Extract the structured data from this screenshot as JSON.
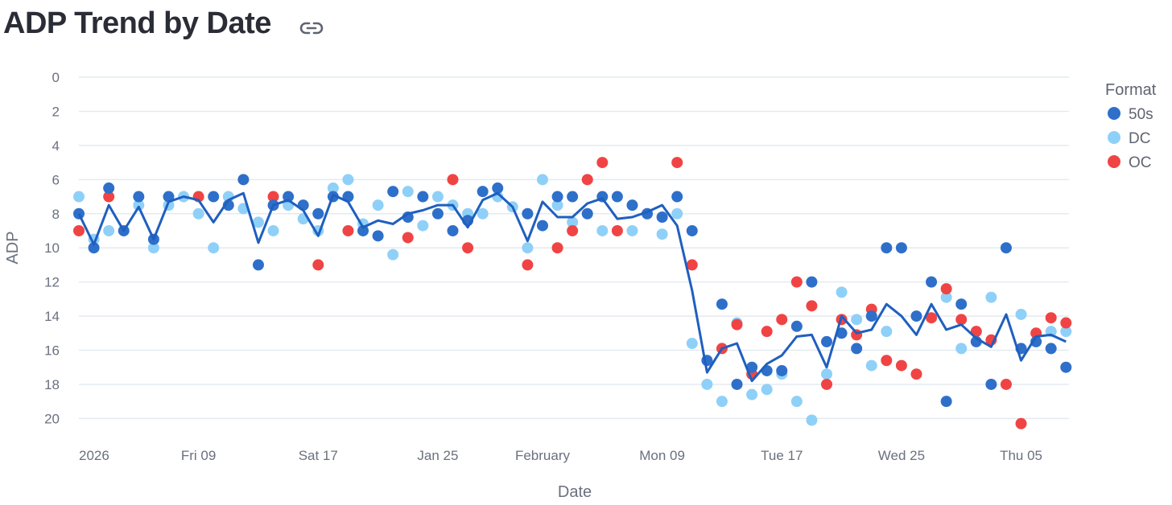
{
  "header": {
    "title": "ADP Trend by Date",
    "link_icon": "link-icon"
  },
  "chart_data": {
    "type": "scatter",
    "title": "ADP Trend by Date",
    "xlabel": "Date",
    "ylabel": "ADP",
    "y_reversed": true,
    "ylim": [
      0,
      20.5
    ],
    "yticks": [
      0,
      2,
      4,
      6,
      8,
      10,
      12,
      14,
      16,
      18,
      20
    ],
    "xlim": [
      "2026-01-01",
      "2026-03-07"
    ],
    "xticks": [
      {
        "date": "2026-01-01",
        "label": "2026"
      },
      {
        "date": "2026-01-09",
        "label": "Fri 09"
      },
      {
        "date": "2026-01-17",
        "label": "Sat 17"
      },
      {
        "date": "2026-01-25",
        "label": "Jan 25"
      },
      {
        "date": "2026-02-01",
        "label": "February"
      },
      {
        "date": "2026-02-09",
        "label": "Mon 09"
      },
      {
        "date": "2026-02-17",
        "label": "Tue 17"
      },
      {
        "date": "2026-02-25",
        "label": "Wed 25"
      },
      {
        "date": "2026-03-05",
        "label": "Thu 05"
      }
    ],
    "grid": true,
    "legend": {
      "title": "Format",
      "position": "top-right"
    },
    "series": [
      {
        "name": "50s",
        "color": "#2e6fca",
        "points": [
          [
            "2026-01-01",
            8
          ],
          [
            "2026-01-02",
            10
          ],
          [
            "2026-01-03",
            6.5
          ],
          [
            "2026-01-04",
            9
          ],
          [
            "2026-01-05",
            7
          ],
          [
            "2026-01-06",
            9.5
          ],
          [
            "2026-01-07",
            7
          ],
          [
            "2026-01-10",
            7
          ],
          [
            "2026-01-11",
            7.5
          ],
          [
            "2026-01-12",
            6
          ],
          [
            "2026-01-13",
            11
          ],
          [
            "2026-01-14",
            7.5
          ],
          [
            "2026-01-15",
            7
          ],
          [
            "2026-01-16",
            7.5
          ],
          [
            "2026-01-17",
            8
          ],
          [
            "2026-01-18",
            7
          ],
          [
            "2026-01-19",
            7
          ],
          [
            "2026-01-20",
            9
          ],
          [
            "2026-01-21",
            9.3
          ],
          [
            "2026-01-22",
            6.7
          ],
          [
            "2026-01-23",
            8.2
          ],
          [
            "2026-01-24",
            7
          ],
          [
            "2026-01-25",
            8
          ],
          [
            "2026-01-26",
            9
          ],
          [
            "2026-01-27",
            8.4
          ],
          [
            "2026-01-28",
            6.7
          ],
          [
            "2026-01-29",
            6.5
          ],
          [
            "2026-01-31",
            8
          ],
          [
            "2026-02-01",
            8.7
          ],
          [
            "2026-02-02",
            7
          ],
          [
            "2026-02-03",
            7
          ],
          [
            "2026-02-04",
            8
          ],
          [
            "2026-02-05",
            7
          ],
          [
            "2026-02-06",
            7
          ],
          [
            "2026-02-07",
            7.5
          ],
          [
            "2026-02-08",
            8
          ],
          [
            "2026-02-09",
            8.2
          ],
          [
            "2026-02-10",
            7
          ],
          [
            "2026-02-11",
            9
          ],
          [
            "2026-02-12",
            16.6
          ],
          [
            "2026-02-13",
            13.3
          ],
          [
            "2026-02-14",
            18
          ],
          [
            "2026-02-15",
            17
          ],
          [
            "2026-02-16",
            17.2
          ],
          [
            "2026-02-17",
            17.2
          ],
          [
            "2026-02-18",
            14.6
          ],
          [
            "2026-02-19",
            12
          ],
          [
            "2026-02-20",
            15.5
          ],
          [
            "2026-02-21",
            15
          ],
          [
            "2026-02-22",
            15.9
          ],
          [
            "2026-02-23",
            14
          ],
          [
            "2026-02-24",
            10
          ],
          [
            "2026-02-25",
            10
          ],
          [
            "2026-02-26",
            14
          ],
          [
            "2026-02-27",
            12
          ],
          [
            "2026-02-28",
            19
          ],
          [
            "2026-03-01",
            13.3
          ],
          [
            "2026-03-02",
            15.5
          ],
          [
            "2026-03-03",
            18
          ],
          [
            "2026-03-04",
            10
          ],
          [
            "2026-03-05",
            15.9
          ],
          [
            "2026-03-06",
            15.5
          ],
          [
            "2026-03-07",
            15.9
          ],
          [
            "2026-03-08",
            17
          ]
        ]
      },
      {
        "name": "DC",
        "color": "#8fd0f8",
        "points": [
          [
            "2026-01-01",
            7
          ],
          [
            "2026-01-02",
            9.5
          ],
          [
            "2026-01-03",
            9
          ],
          [
            "2026-01-05",
            7.5
          ],
          [
            "2026-01-06",
            10
          ],
          [
            "2026-01-07",
            7.5
          ],
          [
            "2026-01-08",
            7
          ],
          [
            "2026-01-09",
            8
          ],
          [
            "2026-01-10",
            10
          ],
          [
            "2026-01-11",
            7
          ],
          [
            "2026-01-12",
            7.7
          ],
          [
            "2026-01-13",
            8.5
          ],
          [
            "2026-01-14",
            9
          ],
          [
            "2026-01-15",
            7.5
          ],
          [
            "2026-01-16",
            8.3
          ],
          [
            "2026-01-17",
            9
          ],
          [
            "2026-01-18",
            6.5
          ],
          [
            "2026-01-19",
            6
          ],
          [
            "2026-01-20",
            8.6
          ],
          [
            "2026-01-21",
            7.5
          ],
          [
            "2026-01-22",
            10.4
          ],
          [
            "2026-01-23",
            6.7
          ],
          [
            "2026-01-24",
            8.7
          ],
          [
            "2026-01-25",
            7
          ],
          [
            "2026-01-26",
            7.5
          ],
          [
            "2026-01-27",
            8
          ],
          [
            "2026-01-28",
            8
          ],
          [
            "2026-01-29",
            7
          ],
          [
            "2026-01-30",
            7.6
          ],
          [
            "2026-01-31",
            10
          ],
          [
            "2026-02-01",
            6
          ],
          [
            "2026-02-02",
            7.5
          ],
          [
            "2026-02-03",
            8.5
          ],
          [
            "2026-02-05",
            9
          ],
          [
            "2026-02-07",
            9
          ],
          [
            "2026-02-08",
            8
          ],
          [
            "2026-02-09",
            9.2
          ],
          [
            "2026-02-10",
            8
          ],
          [
            "2026-02-11",
            15.6
          ],
          [
            "2026-02-12",
            18
          ],
          [
            "2026-02-13",
            19
          ],
          [
            "2026-02-14",
            14.4
          ],
          [
            "2026-02-15",
            18.6
          ],
          [
            "2026-02-16",
            18.3
          ],
          [
            "2026-02-17",
            17.4
          ],
          [
            "2026-02-18",
            19
          ],
          [
            "2026-02-19",
            20.1
          ],
          [
            "2026-02-20",
            17.4
          ],
          [
            "2026-02-21",
            12.6
          ],
          [
            "2026-02-22",
            14.2
          ],
          [
            "2026-02-23",
            16.9
          ],
          [
            "2026-02-24",
            14.9
          ],
          [
            "2026-02-28",
            12.9
          ],
          [
            "2026-03-01",
            15.9
          ],
          [
            "2026-03-03",
            12.9
          ],
          [
            "2026-03-05",
            13.9
          ],
          [
            "2026-03-07",
            14.9
          ],
          [
            "2026-03-08",
            14.9
          ]
        ]
      },
      {
        "name": "OC",
        "color": "#f04444",
        "points": [
          [
            "2026-01-01",
            9
          ],
          [
            "2026-01-03",
            7
          ],
          [
            "2026-01-09",
            7
          ],
          [
            "2026-01-14",
            7
          ],
          [
            "2026-01-17",
            11
          ],
          [
            "2026-01-19",
            9
          ],
          [
            "2026-01-23",
            9.4
          ],
          [
            "2026-01-26",
            6
          ],
          [
            "2026-01-27",
            10
          ],
          [
            "2026-01-31",
            11
          ],
          [
            "2026-02-02",
            10
          ],
          [
            "2026-02-03",
            9
          ],
          [
            "2026-02-04",
            6
          ],
          [
            "2026-02-05",
            5
          ],
          [
            "2026-02-06",
            9
          ],
          [
            "2026-02-10",
            5
          ],
          [
            "2026-02-11",
            11
          ],
          [
            "2026-02-13",
            15.9
          ],
          [
            "2026-02-14",
            14.5
          ],
          [
            "2026-02-15",
            17.4
          ],
          [
            "2026-02-16",
            14.9
          ],
          [
            "2026-02-17",
            14.2
          ],
          [
            "2026-02-18",
            12
          ],
          [
            "2026-02-19",
            13.4
          ],
          [
            "2026-02-20",
            18
          ],
          [
            "2026-02-21",
            14.2
          ],
          [
            "2026-02-22",
            15.1
          ],
          [
            "2026-02-23",
            13.6
          ],
          [
            "2026-02-24",
            16.6
          ],
          [
            "2026-02-25",
            16.9
          ],
          [
            "2026-02-26",
            17.4
          ],
          [
            "2026-02-27",
            14.1
          ],
          [
            "2026-02-28",
            12.4
          ],
          [
            "2026-03-01",
            14.2
          ],
          [
            "2026-03-02",
            14.9
          ],
          [
            "2026-03-03",
            15.4
          ],
          [
            "2026-03-04",
            18
          ],
          [
            "2026-03-05",
            20.3
          ],
          [
            "2026-03-06",
            15
          ],
          [
            "2026-03-07",
            14.1
          ],
          [
            "2026-03-08",
            14.4
          ]
        ]
      }
    ],
    "trend": {
      "color": "#1f5fbf",
      "points": [
        [
          "2026-01-01",
          8
        ],
        [
          "2026-01-02",
          9.8
        ],
        [
          "2026-01-03",
          7.5
        ],
        [
          "2026-01-04",
          9
        ],
        [
          "2026-01-05",
          7.6
        ],
        [
          "2026-01-06",
          9.5
        ],
        [
          "2026-01-07",
          7.3
        ],
        [
          "2026-01-08",
          7
        ],
        [
          "2026-01-09",
          7.2
        ],
        [
          "2026-01-10",
          8.5
        ],
        [
          "2026-01-11",
          7.2
        ],
        [
          "2026-01-12",
          6.8
        ],
        [
          "2026-01-13",
          9.7
        ],
        [
          "2026-01-14",
          7.5
        ],
        [
          "2026-01-15",
          7.2
        ],
        [
          "2026-01-16",
          7.8
        ],
        [
          "2026-01-17",
          9.3
        ],
        [
          "2026-01-18",
          6.9
        ],
        [
          "2026-01-19",
          7.3
        ],
        [
          "2026-01-20",
          8.8
        ],
        [
          "2026-01-21",
          8.4
        ],
        [
          "2026-01-22",
          8.6
        ],
        [
          "2026-01-23",
          8
        ],
        [
          "2026-01-24",
          7.8
        ],
        [
          "2026-01-25",
          7.5
        ],
        [
          "2026-01-26",
          7.5
        ],
        [
          "2026-01-27",
          8.8
        ],
        [
          "2026-01-28",
          7.2
        ],
        [
          "2026-01-29",
          6.8
        ],
        [
          "2026-01-30",
          7.6
        ],
        [
          "2026-01-31",
          9.6
        ],
        [
          "2026-02-01",
          7.3
        ],
        [
          "2026-02-02",
          8.2
        ],
        [
          "2026-02-03",
          8.2
        ],
        [
          "2026-02-04",
          7.4
        ],
        [
          "2026-02-05",
          7.1
        ],
        [
          "2026-02-06",
          8.3
        ],
        [
          "2026-02-07",
          8.2
        ],
        [
          "2026-02-08",
          7.9
        ],
        [
          "2026-02-09",
          7.5
        ],
        [
          "2026-02-10",
          8.7
        ],
        [
          "2026-02-11",
          12.5
        ],
        [
          "2026-02-12",
          17.3
        ],
        [
          "2026-02-13",
          15.9
        ],
        [
          "2026-02-14",
          15.6
        ],
        [
          "2026-02-15",
          17.8
        ],
        [
          "2026-02-16",
          16.8
        ],
        [
          "2026-02-17",
          16.3
        ],
        [
          "2026-02-18",
          15.2
        ],
        [
          "2026-02-19",
          15.1
        ],
        [
          "2026-02-20",
          17
        ],
        [
          "2026-02-21",
          14
        ],
        [
          "2026-02-22",
          15
        ],
        [
          "2026-02-23",
          14.8
        ],
        [
          "2026-02-24",
          13.3
        ],
        [
          "2026-02-25",
          14
        ],
        [
          "2026-02-26",
          15.1
        ],
        [
          "2026-02-27",
          13.3
        ],
        [
          "2026-02-28",
          14.8
        ],
        [
          "2026-03-01",
          14.5
        ],
        [
          "2026-03-02",
          15.3
        ],
        [
          "2026-03-03",
          15.8
        ],
        [
          "2026-03-04",
          13.9
        ],
        [
          "2026-03-05",
          16.6
        ],
        [
          "2026-03-06",
          15.2
        ],
        [
          "2026-03-07",
          15.1
        ],
        [
          "2026-03-08",
          15.5
        ]
      ]
    }
  }
}
